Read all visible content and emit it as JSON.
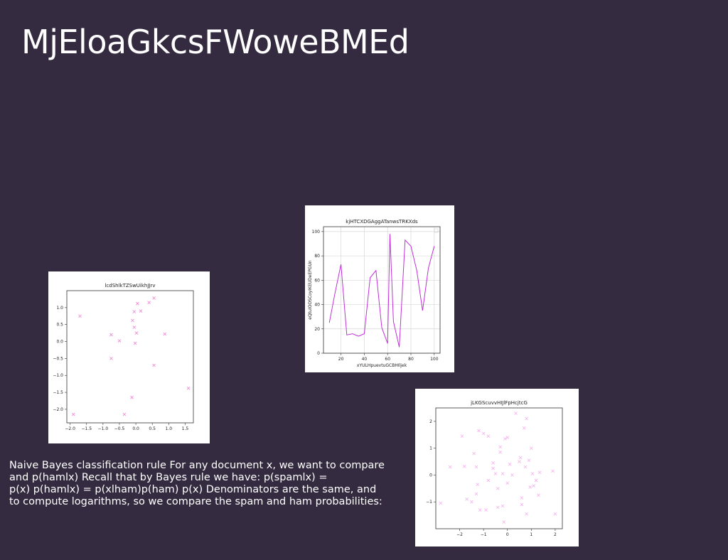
{
  "slide": {
    "title": "MjEloaGkcsFWoweBMEd",
    "body_lines": [
      "Naive Bayes classification rule For any document x, we want to compare",
      "and p(hamlx) Recall that by Bayes rule we have: p(spamlx) =",
      "p(x) p(hamlx) = p(xlham)p(ham) p(x) Denominators are the same, and",
      "to compute logarithms, so we compare the spam and ham probabilities:"
    ]
  },
  "chart_data": [
    {
      "type": "scatter",
      "title": "lcdShlkTZSwUikhJJrv",
      "xlabel": "",
      "ylabel": "",
      "xlim": [
        -2.1,
        1.75
      ],
      "ylim": [
        -2.4,
        1.5
      ],
      "xticks": [
        -2.0,
        -1.5,
        -1.0,
        -0.5,
        0.0,
        0.5,
        1.0,
        1.5
      ],
      "yticks": [
        -2.0,
        -1.5,
        -1.0,
        -0.5,
        0.0,
        0.5,
        1.0
      ],
      "marker": "x",
      "color": "#f28ad8",
      "grid": false,
      "points": [
        [
          -1.7,
          0.75
        ],
        [
          -0.75,
          0.2
        ],
        [
          -0.5,
          0.02
        ],
        [
          -0.75,
          -0.5
        ],
        [
          -0.1,
          0.62
        ],
        [
          -0.05,
          0.88
        ],
        [
          0.05,
          1.12
        ],
        [
          0.15,
          0.9
        ],
        [
          0.4,
          1.15
        ],
        [
          0.55,
          1.28
        ],
        [
          -0.05,
          0.42
        ],
        [
          0.02,
          0.25
        ],
        [
          -0.02,
          -0.05
        ],
        [
          0.88,
          0.22
        ],
        [
          0.55,
          -0.7
        ],
        [
          -0.12,
          -1.65
        ],
        [
          -0.35,
          -2.15
        ],
        [
          -1.9,
          -2.15
        ],
        [
          1.6,
          -1.38
        ]
      ]
    },
    {
      "type": "line",
      "title": "kjHTCXDGAggATanwsTRKXds",
      "xlabel": "xYULHpuevtuGCBHIljek",
      "ylabel": "eQtuIOOSCoyIKEUDeEPGUn",
      "xlim": [
        5,
        105
      ],
      "ylim": [
        0,
        104
      ],
      "xticks": [
        20,
        40,
        60,
        80,
        100
      ],
      "yticks": [
        0,
        20,
        40,
        60,
        80,
        100
      ],
      "color": "#c030d8",
      "grid": true,
      "legend": "top-right",
      "x": [
        10,
        15,
        20,
        25,
        30,
        35,
        40,
        45,
        50,
        55,
        60,
        62,
        65,
        70,
        75,
        80,
        85,
        90,
        95,
        100
      ],
      "y": [
        25,
        50,
        73,
        15,
        16,
        14,
        16,
        62,
        68,
        21,
        8,
        98,
        26,
        5,
        93,
        88,
        68,
        35,
        70,
        88
      ]
    },
    {
      "type": "scatter",
      "title": "jLKGScuvvHIJlFpHcjtcG",
      "xlabel": "",
      "ylabel": "",
      "xlim": [
        -3.0,
        2.3
      ],
      "ylim": [
        -2.0,
        2.5
      ],
      "xticks": [
        -2,
        -1,
        0,
        1,
        2
      ],
      "yticks": [
        -1,
        0,
        1,
        2
      ],
      "marker": "x",
      "color": "#f5b6ee",
      "grid": false,
      "points": [
        [
          -2.8,
          -1.05
        ],
        [
          -2.4,
          0.3
        ],
        [
          -1.9,
          1.45
        ],
        [
          -1.8,
          0.32
        ],
        [
          -1.7,
          -0.9
        ],
        [
          -1.5,
          -1.0
        ],
        [
          -1.3,
          -0.7
        ],
        [
          -1.3,
          0.3
        ],
        [
          -1.2,
          1.65
        ],
        [
          -1.15,
          -1.3
        ],
        [
          -1.0,
          1.55
        ],
        [
          -0.9,
          -1.3
        ],
        [
          -1.25,
          -0.35
        ],
        [
          -0.8,
          1.45
        ],
        [
          -0.6,
          0.45
        ],
        [
          -0.6,
          0.25
        ],
        [
          -0.4,
          -0.5
        ],
        [
          -0.3,
          0.85
        ],
        [
          -0.3,
          1.05
        ],
        [
          -0.4,
          -1.2
        ],
        [
          -0.2,
          0.05
        ],
        [
          -0.2,
          -1.15
        ],
        [
          -0.1,
          1.35
        ],
        [
          0.0,
          1.4
        ],
        [
          0.0,
          -0.3
        ],
        [
          0.1,
          0.4
        ],
        [
          0.35,
          2.3
        ],
        [
          0.5,
          0.5
        ],
        [
          0.55,
          0.65
        ],
        [
          0.6,
          -0.85
        ],
        [
          0.7,
          1.75
        ],
        [
          0.75,
          0.3
        ],
        [
          0.8,
          -1.45
        ],
        [
          0.9,
          0.55
        ],
        [
          0.95,
          -0.45
        ],
        [
          1.0,
          1.0
        ],
        [
          1.05,
          0.05
        ],
        [
          1.1,
          -0.4
        ],
        [
          1.2,
          -0.2
        ],
        [
          1.3,
          -0.75
        ],
        [
          1.35,
          0.1
        ],
        [
          0.6,
          -1.1
        ],
        [
          -1.4,
          0.8
        ],
        [
          -0.8,
          -0.2
        ],
        [
          0.8,
          2.1
        ],
        [
          1.9,
          0.15
        ],
        [
          2.0,
          -1.45
        ],
        [
          -0.15,
          -1.75
        ],
        [
          -0.5,
          0.05
        ],
        [
          0.2,
          0.0
        ]
      ]
    }
  ]
}
